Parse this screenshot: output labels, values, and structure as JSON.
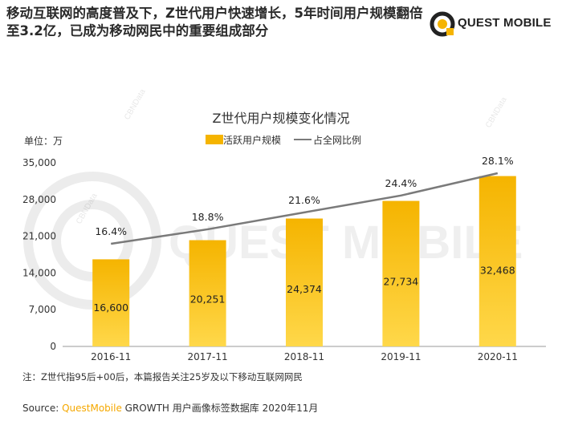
{
  "headline": "移动互联网的高度普及下，Z世代用户快速增长，5年时间用户规模翻倍至3.2亿，已成为移动网民中的重要组成部分",
  "logo": {
    "text": "QUEST MOBILE",
    "icon": "questmobile-ring-icon"
  },
  "watermark": {
    "text": "QUEST MOBILE",
    "side_text": "CBNData"
  },
  "colors": {
    "bar": "#f5b400",
    "bar_light": "#ffd84a",
    "line": "#7a7a7a",
    "brand": "#f5a800"
  },
  "chart_data": {
    "type": "bar",
    "title": "Z世代用户规模变化情况",
    "unit_label": "单位：万",
    "categories": [
      "2016-11",
      "2017-11",
      "2018-11",
      "2019-11",
      "2020-11"
    ],
    "ylim": [
      0,
      35000
    ],
    "yticks": [
      0,
      7000,
      14000,
      21000,
      28000,
      35000
    ],
    "ytick_labels": [
      "0",
      "7,000",
      "14,000",
      "21,000",
      "28,000",
      "35,000"
    ],
    "series": [
      {
        "name": "活跃用户规模",
        "type": "bar",
        "values": [
          16600,
          20251,
          24374,
          27734,
          32468
        ],
        "labels": [
          "16,600",
          "20,251",
          "24,374",
          "27,734",
          "32,468"
        ]
      },
      {
        "name": "占全网比例",
        "type": "line",
        "values": [
          16.4,
          18.8,
          21.6,
          24.4,
          28.1
        ],
        "labels": [
          "16.4%",
          "18.8%",
          "21.6%",
          "24.4%",
          "28.1%"
        ]
      }
    ],
    "legend_position": "top-center",
    "grid": false
  },
  "note": "注：Z世代指95后+00后，本篇报告关注25岁及以下移动互联网网民",
  "source": {
    "prefix": "Source: ",
    "brand": "QuestMobile",
    "rest": " GROWTH 用户画像标签数据库 2020年11月"
  }
}
